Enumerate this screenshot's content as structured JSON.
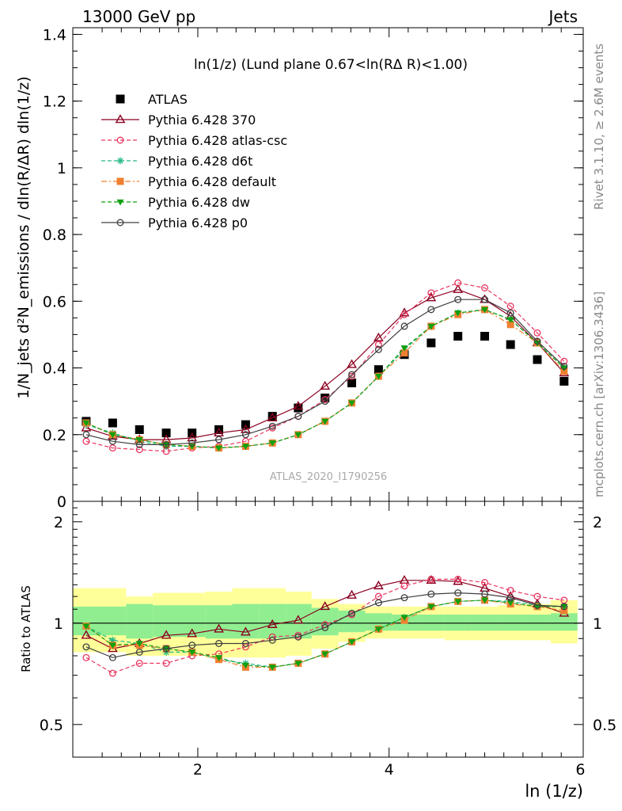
{
  "header": {
    "left": "13000 GeV pp",
    "right": "Jets"
  },
  "side_labels": {
    "rivet": "Rivet 3.1.10, ≥ 2.6M events",
    "mcplots": "mcplots.cern.ch [arXiv:1306.3436]"
  },
  "chart_data": [
    {
      "type": "line",
      "title": "ln(1/z) (Lund plane 0.67<ln(RΔ R)<1.00)",
      "watermark": "ATLAS_2020_I1790256",
      "ylabel": "1/N_jets d²N_emissions / dln(R/ΔR) dln(1/z)",
      "ylim": [
        0,
        1.42
      ],
      "xlim": [
        0.693,
        6.03
      ],
      "yticks": [
        0,
        0.2,
        0.4,
        0.6,
        0.8,
        1,
        1.2,
        1.4
      ],
      "ytick_labels": [
        "0",
        "0.2",
        "0.4",
        "0.6",
        "0.8",
        "1",
        "1.2",
        "1.4"
      ],
      "legend_position": "top-left",
      "x": [
        0.833,
        1.11,
        1.39,
        1.67,
        1.94,
        2.22,
        2.5,
        2.78,
        3.05,
        3.33,
        3.61,
        3.89,
        4.16,
        4.44,
        4.72,
        5.0,
        5.27,
        5.55,
        5.83
      ],
      "series": [
        {
          "name": "ATLAS",
          "color": "#000000",
          "marker": "square",
          "line": "none",
          "values": [
            0.24,
            0.235,
            0.215,
            0.205,
            0.205,
            0.215,
            0.23,
            0.255,
            0.28,
            0.31,
            0.355,
            0.395,
            0.44,
            0.475,
            0.495,
            0.495,
            0.47,
            0.425,
            0.36
          ]
        },
        {
          "name": "Pythia 6.428 370",
          "color": "#8b0020",
          "marker": "triangle-open",
          "line": "solid",
          "values": [
            0.22,
            0.195,
            0.185,
            0.185,
            0.19,
            0.205,
            0.215,
            0.25,
            0.285,
            0.345,
            0.41,
            0.49,
            0.565,
            0.61,
            0.635,
            0.605,
            0.555,
            0.475,
            0.385
          ]
        },
        {
          "name": "Pythia 6.428 atlas-csc",
          "color": "#e8355f",
          "marker": "circle-open",
          "line": "dashed",
          "values": [
            0.18,
            0.16,
            0.155,
            0.15,
            0.16,
            0.165,
            0.18,
            0.22,
            0.255,
            0.305,
            0.375,
            0.47,
            0.56,
            0.625,
            0.655,
            0.64,
            0.585,
            0.505,
            0.42
          ]
        },
        {
          "name": "Pythia 6.428 d6t",
          "color": "#20b888",
          "marker": "star",
          "line": "dashed",
          "values": [
            0.23,
            0.205,
            0.18,
            0.165,
            0.165,
            0.16,
            0.165,
            0.175,
            0.2,
            0.24,
            0.295,
            0.375,
            0.455,
            0.525,
            0.565,
            0.575,
            0.545,
            0.475,
            0.4
          ]
        },
        {
          "name": "Pythia 6.428 default",
          "color": "#f08030",
          "marker": "square",
          "line": "dashdot",
          "values": [
            0.235,
            0.2,
            0.185,
            0.17,
            0.165,
            0.16,
            0.165,
            0.175,
            0.2,
            0.24,
            0.295,
            0.375,
            0.445,
            0.525,
            0.56,
            0.575,
            0.53,
            0.475,
            0.39
          ]
        },
        {
          "name": "Pythia 6.428 dw",
          "color": "#10a010",
          "marker": "triangle-down",
          "line": "dashed",
          "values": [
            0.235,
            0.2,
            0.185,
            0.17,
            0.165,
            0.16,
            0.165,
            0.175,
            0.2,
            0.24,
            0.295,
            0.375,
            0.46,
            0.525,
            0.565,
            0.575,
            0.545,
            0.475,
            0.4
          ]
        },
        {
          "name": "Pythia 6.428 p0",
          "color": "#404040",
          "marker": "circle-open",
          "line": "solid",
          "values": [
            0.2,
            0.18,
            0.17,
            0.17,
            0.175,
            0.185,
            0.2,
            0.225,
            0.255,
            0.3,
            0.38,
            0.455,
            0.525,
            0.575,
            0.605,
            0.605,
            0.565,
            0.48,
            0.405
          ]
        }
      ]
    },
    {
      "type": "line",
      "ylabel": "Ratio to ATLAS",
      "xlabel": "ln (1/z)",
      "ylim": [
        0.4,
        2.3
      ],
      "xlim": [
        0.693,
        6.03
      ],
      "log_y": true,
      "yticks": [
        0.5,
        1,
        2
      ],
      "ytick_labels": [
        "0.5",
        "1",
        "2"
      ],
      "xticks": [
        2,
        4,
        6
      ],
      "xtick_labels": [
        "2",
        "4",
        "6"
      ],
      "bands": {
        "x_edges": [
          0.693,
          0.97,
          1.25,
          1.53,
          1.81,
          2.08,
          2.36,
          2.64,
          2.92,
          3.19,
          3.47,
          3.75,
          4.03,
          4.3,
          4.58,
          4.86,
          5.14,
          5.41,
          5.69,
          5.97
        ],
        "green": {
          "color": "#90ee90",
          "lo": [
            0.92,
            0.92,
            0.9,
            0.91,
            0.91,
            0.9,
            0.9,
            0.9,
            0.9,
            0.92,
            0.94,
            0.95,
            0.95,
            0.95,
            0.95,
            0.95,
            0.95,
            0.95,
            0.95
          ],
          "hi": [
            1.12,
            1.12,
            1.14,
            1.13,
            1.13,
            1.13,
            1.14,
            1.14,
            1.14,
            1.11,
            1.09,
            1.07,
            1.06,
            1.06,
            1.06,
            1.06,
            1.06,
            1.06,
            1.07
          ]
        },
        "yellow": {
          "color": "#ffff99",
          "lo": [
            0.82,
            0.82,
            0.8,
            0.8,
            0.8,
            0.79,
            0.79,
            0.79,
            0.8,
            0.84,
            0.88,
            0.9,
            0.9,
            0.9,
            0.89,
            0.89,
            0.89,
            0.89,
            0.87
          ],
          "hi": [
            1.27,
            1.27,
            1.2,
            1.23,
            1.23,
            1.24,
            1.27,
            1.27,
            1.24,
            1.18,
            1.14,
            1.12,
            1.12,
            1.12,
            1.12,
            1.12,
            1.13,
            1.14,
            1.17
          ]
        }
      },
      "series": [
        {
          "name": "Pythia 6.428 370",
          "values": [
            0.92,
            0.84,
            0.87,
            0.92,
            0.93,
            0.96,
            0.94,
            0.99,
            1.02,
            1.12,
            1.21,
            1.29,
            1.34,
            1.34,
            1.33,
            1.27,
            1.2,
            1.14,
            1.07
          ]
        },
        {
          "name": "Pythia 6.428 atlas-csc",
          "values": [
            0.79,
            0.71,
            0.76,
            0.76,
            0.8,
            0.81,
            0.85,
            0.91,
            0.92,
            0.99,
            1.06,
            1.2,
            1.29,
            1.35,
            1.35,
            1.32,
            1.25,
            1.2,
            1.17
          ]
        },
        {
          "name": "Pythia 6.428 d6t",
          "values": [
            0.98,
            0.89,
            0.87,
            0.82,
            0.82,
            0.78,
            0.76,
            0.74,
            0.76,
            0.81,
            0.88,
            0.96,
            1.04,
            1.12,
            1.16,
            1.17,
            1.16,
            1.13,
            1.12
          ]
        },
        {
          "name": "Pythia 6.428 default",
          "values": [
            0.98,
            0.86,
            0.86,
            0.84,
            0.82,
            0.78,
            0.74,
            0.74,
            0.76,
            0.81,
            0.88,
            0.96,
            1.02,
            1.12,
            1.16,
            1.17,
            1.14,
            1.12,
            1.09
          ]
        },
        {
          "name": "Pythia 6.428 dw",
          "values": [
            0.98,
            0.86,
            0.87,
            0.84,
            0.82,
            0.79,
            0.75,
            0.74,
            0.76,
            0.81,
            0.88,
            0.96,
            1.04,
            1.12,
            1.16,
            1.17,
            1.15,
            1.12,
            1.12
          ]
        },
        {
          "name": "Pythia 6.428 p0",
          "values": [
            0.85,
            0.79,
            0.82,
            0.84,
            0.86,
            0.87,
            0.87,
            0.89,
            0.91,
            0.97,
            1.07,
            1.15,
            1.19,
            1.22,
            1.23,
            1.22,
            1.19,
            1.13,
            1.12
          ]
        }
      ]
    }
  ]
}
